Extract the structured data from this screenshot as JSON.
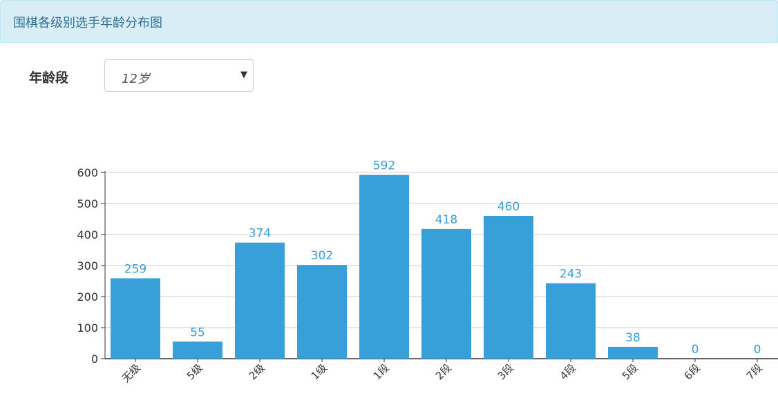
{
  "header": {
    "title": "围棋各级别选手年龄分布图"
  },
  "filter": {
    "label": "年龄段",
    "selected": "12岁"
  },
  "icons": {
    "dropdown": "caret-down-icon"
  },
  "colors": {
    "bar": "#38a0d9",
    "value_label": "#38a0d9",
    "grid": "#cccccc",
    "axis": "#333333"
  },
  "chart_data": {
    "type": "bar",
    "categories": [
      "无级",
      "5级",
      "2级",
      "1级",
      "1段",
      "2段",
      "3段",
      "4段",
      "5段",
      "6段",
      "7段"
    ],
    "values": [
      259,
      55,
      374,
      302,
      592,
      418,
      460,
      243,
      38,
      0,
      0
    ],
    "ylim": [
      0,
      600
    ],
    "yticks": [
      0,
      100,
      200,
      300,
      400,
      500,
      600
    ],
    "grid": true,
    "data_labels": true,
    "title": "",
    "xlabel": "",
    "ylabel": ""
  }
}
